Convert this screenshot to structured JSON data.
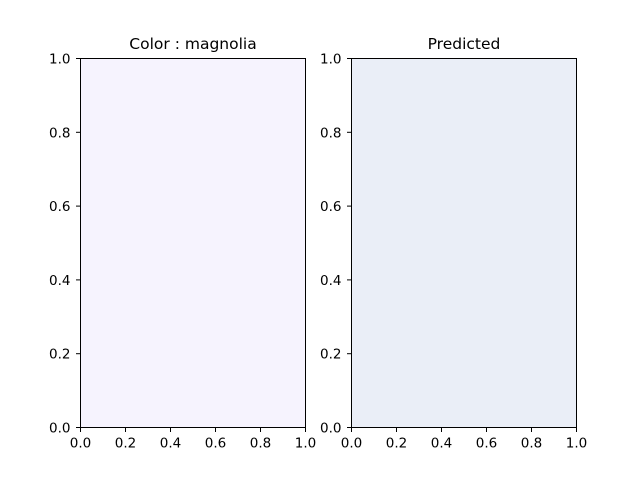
{
  "chart_data": [
    {
      "type": "area",
      "title": "Color : magnolia",
      "fill_color": "#f6f3fe",
      "xlim": [
        0,
        1
      ],
      "ylim": [
        0,
        1
      ],
      "xticks": [
        "0.0",
        "0.2",
        "0.4",
        "0.6",
        "0.8",
        "1.0"
      ],
      "yticks": [
        "0.0",
        "0.2",
        "0.4",
        "0.6",
        "0.8",
        "1.0"
      ],
      "grid": false
    },
    {
      "type": "area",
      "title": "Predicted",
      "fill_color": "#eaeef7",
      "xlim": [
        0,
        1
      ],
      "ylim": [
        0,
        1
      ],
      "xticks": [
        "0.0",
        "0.2",
        "0.4",
        "0.6",
        "0.8",
        "1.0"
      ],
      "yticks": [
        "0.0",
        "0.2",
        "0.4",
        "0.6",
        "0.8",
        "1.0"
      ],
      "grid": false
    }
  ]
}
